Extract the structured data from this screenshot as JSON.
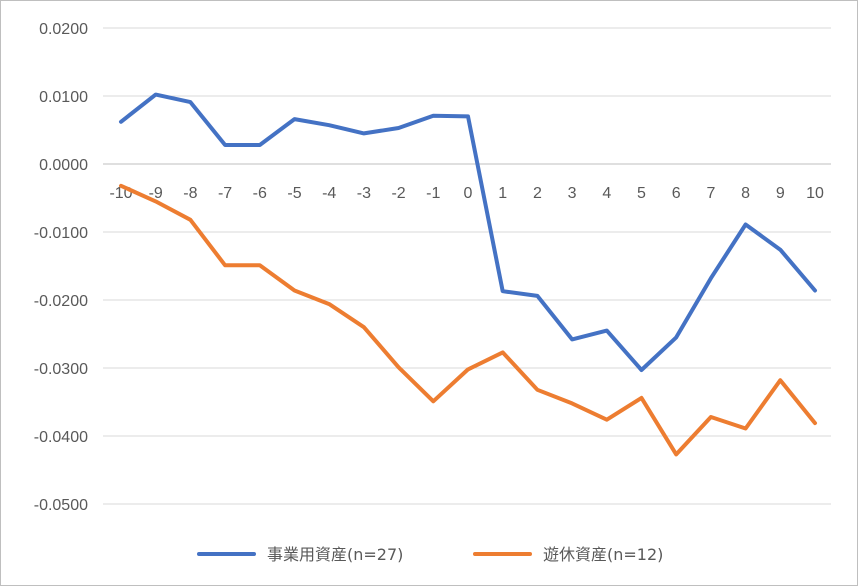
{
  "chart_data": {
    "type": "line",
    "title": "",
    "xlabel": "",
    "ylabel": "",
    "x": [
      -10,
      -9,
      -8,
      -7,
      -6,
      -5,
      -4,
      -3,
      -2,
      -1,
      0,
      1,
      2,
      3,
      4,
      5,
      6,
      7,
      8,
      9,
      10
    ],
    "x_tick_labels": [
      "-10",
      "-9",
      "-8",
      "-7",
      "-6",
      "-5",
      "-4",
      "-3",
      "-2",
      "-1",
      "0",
      "1",
      "2",
      "3",
      "4",
      "5",
      "6",
      "7",
      "8",
      "9",
      "10"
    ],
    "ylim": [
      -0.05,
      0.02
    ],
    "y_ticks": [
      0.02,
      0.01,
      0.0,
      -0.01,
      -0.02,
      -0.03,
      -0.04,
      -0.05
    ],
    "y_tick_labels": [
      "0.0200",
      "0.0100",
      "0.0000",
      "-0.0100",
      "-0.0200",
      "-0.0300",
      "-0.0400",
      "-0.0500"
    ],
    "grid": "horizontal",
    "legend_position": "bottom",
    "series": [
      {
        "name": "事業用資産(n=27)",
        "color": "#4472C4",
        "values": [
          0.0062,
          0.0102,
          0.0091,
          0.0028,
          0.0028,
          0.0066,
          0.0057,
          0.0045,
          0.0053,
          0.0071,
          0.007,
          -0.0187,
          -0.0194,
          -0.0258,
          -0.0245,
          -0.0303,
          -0.0255,
          -0.0168,
          -0.0089,
          -0.0126,
          -0.0186
        ]
      },
      {
        "name": "遊休資産(n=12)",
        "color": "#ED7D31",
        "values": [
          -0.0032,
          -0.0055,
          -0.0082,
          -0.0149,
          -0.0149,
          -0.0186,
          -0.0206,
          -0.024,
          -0.0299,
          -0.0349,
          -0.0302,
          -0.0277,
          -0.0332,
          -0.0352,
          -0.0376,
          -0.0344,
          -0.0427,
          -0.0372,
          -0.0389,
          -0.0318,
          -0.0381
        ]
      }
    ]
  }
}
